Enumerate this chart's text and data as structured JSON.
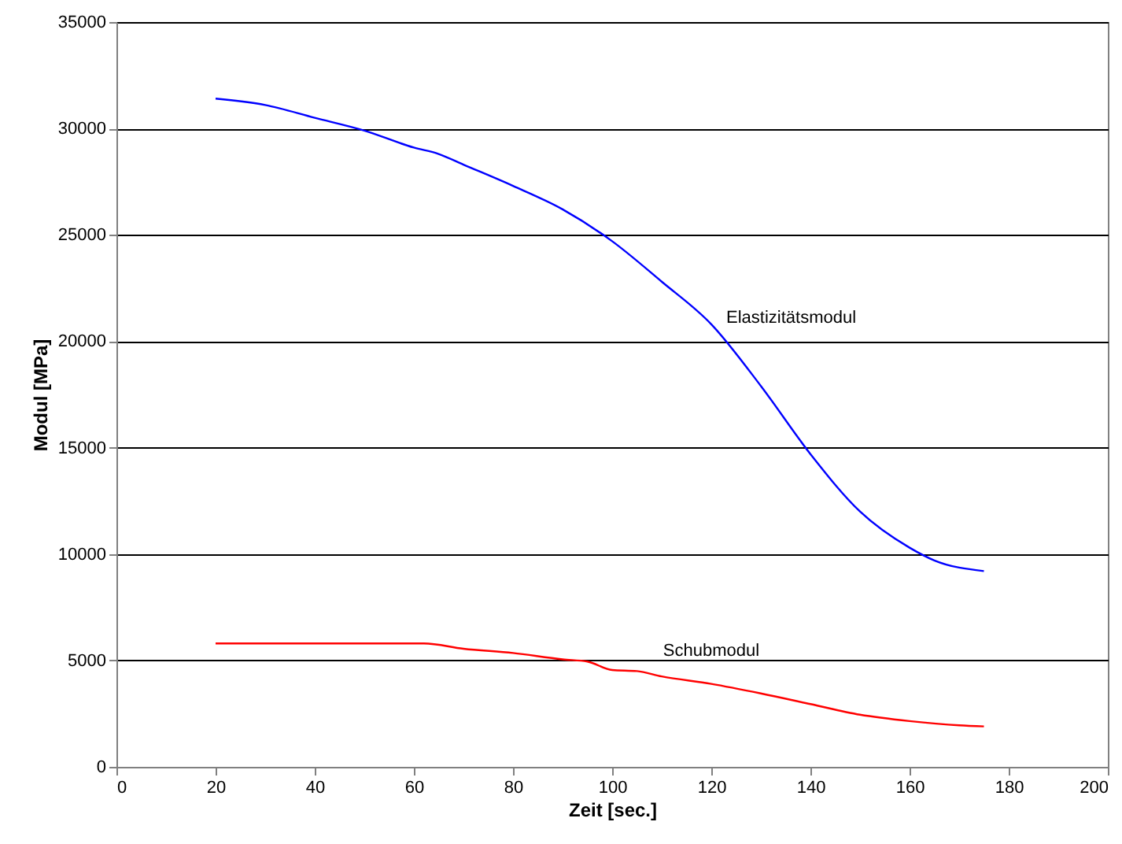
{
  "chart_data": {
    "type": "line",
    "xlabel": "Zeit [sec.]",
    "ylabel": "Modul [MPa]",
    "xlim": [
      0,
      200
    ],
    "xticks": [
      0,
      20,
      40,
      60,
      80,
      100,
      120,
      140,
      160,
      180,
      200
    ],
    "ylim": [
      0,
      35000
    ],
    "yticks": [
      0,
      5000,
      10000,
      15000,
      20000,
      25000,
      30000,
      35000
    ],
    "grid": "y",
    "series": [
      {
        "name": "Elastizitätsmodul",
        "color": "#0000ff",
        "x": [
          20,
          30,
          40,
          50,
          60,
          65,
          70,
          80,
          90,
          100,
          110,
          120,
          130,
          140,
          150,
          160,
          165,
          175
        ],
        "values": [
          31400,
          31100,
          30500,
          29900,
          29100,
          28800,
          28300,
          27300,
          26200,
          24700,
          22800,
          20800,
          17900,
          14700,
          12000,
          10300,
          9700,
          9200
        ]
      },
      {
        "name": "Schubmodul",
        "color": "#ff0000",
        "x": [
          20,
          40,
          62,
          70,
          80,
          90,
          95,
          100,
          105,
          110,
          120,
          130,
          140,
          150,
          160,
          170,
          175
        ],
        "values": [
          5800,
          5800,
          5800,
          5550,
          5350,
          5050,
          4950,
          4550,
          4500,
          4250,
          3900,
          3450,
          2950,
          2450,
          2150,
          1950,
          1900
        ]
      }
    ]
  }
}
